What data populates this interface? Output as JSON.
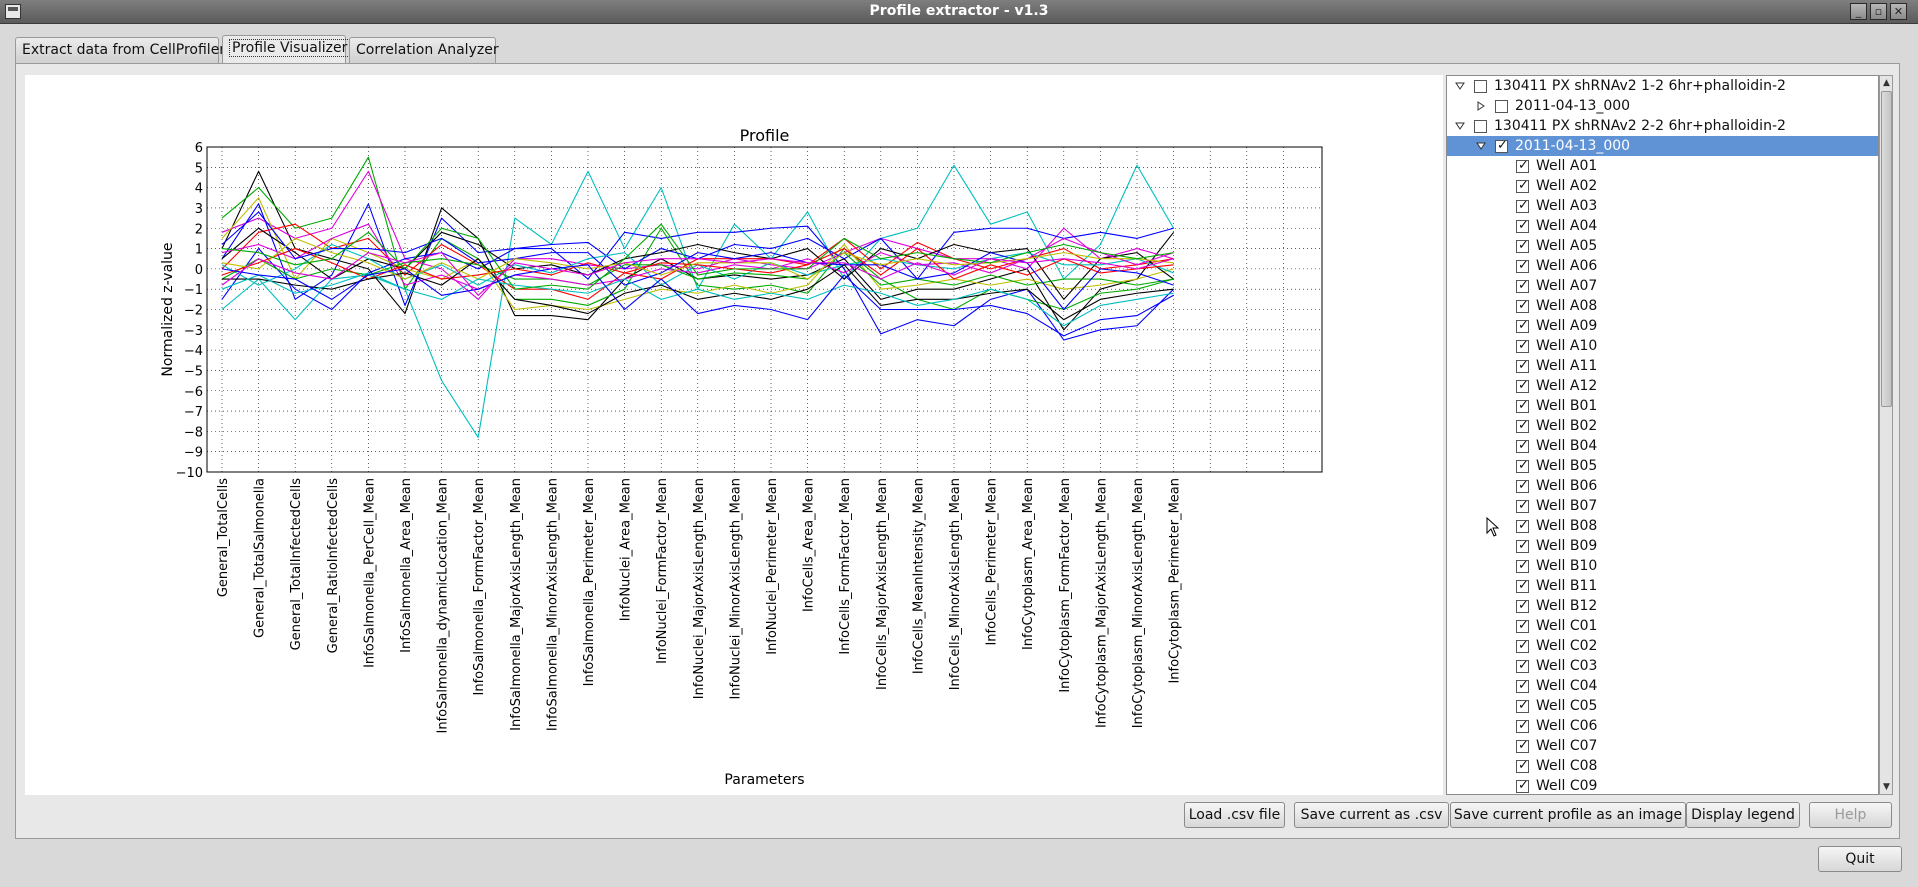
{
  "window": {
    "title": "Profile extractor - v1.3"
  },
  "tabs": [
    {
      "label": "Extract data from CellProfiler"
    },
    {
      "label": "Profile Visualizer"
    },
    {
      "label": "Correlation Analyzer"
    }
  ],
  "chart_data": {
    "type": "line",
    "title": "Profile",
    "xlabel": "Parameters",
    "ylabel": "Normalized z-value",
    "ylim": [
      -10,
      6
    ],
    "yticks": [
      "6",
      "5",
      "4",
      "3",
      "2",
      "1",
      "0",
      "−1",
      "−2",
      "−3",
      "−4",
      "−5",
      "−6",
      "−7",
      "−8",
      "−9",
      "−10"
    ],
    "grid": true,
    "categories": [
      "General_TotalCells",
      "General_TotalSalmonella",
      "General_TotalInfectedCells",
      "General_RatioInfectedCells",
      "InfoSalmonella_PerCell_Mean",
      "InfoSalmonella_Area_Mean",
      "InfoSalmonella_dynamicLocation_Mean",
      "InfoSalmonella_FormFactor_Mean",
      "InfoSalmonella_MajorAxisLength_Mean",
      "InfoSalmonella_MinorAxisLength_Mean",
      "InfoSalmonella_Perimeter_Mean",
      "InfoNuclei_Area_Mean",
      "InfoNuclei_FormFactor_Mean",
      "InfoNuclei_MajorAxisLength_Mean",
      "InfoNuclei_MinorAxisLength_Mean",
      "InfoNuclei_Perimeter_Mean",
      "InfoCells_Area_Mean",
      "InfoCells_FormFactor_Mean",
      "InfoCells_MajorAxisLength_Mean",
      "InfoCells_MeanIntensity_Mean",
      "InfoCells_MinorAxisLength_Mean",
      "InfoCells_Perimeter_Mean",
      "InfoCytoplasm_Area_Mean",
      "InfoCytoplasm_FormFactor_Mean",
      "InfoCytoplasm_MajorAxisLength_Mean",
      "InfoCytoplasm_MinorAxisLength_Mean",
      "InfoCytoplasm_Perimeter_Mean"
    ],
    "series": [
      {
        "color": "#00bfbf",
        "values": [
          -2.0,
          -0.5,
          -2.5,
          -0.5,
          -0.3,
          -1.0,
          -5.5,
          -8.3,
          2.5,
          1.2,
          4.8,
          1.0,
          4.0,
          -1.0,
          2.2,
          0.5,
          2.8,
          -0.5,
          1.5,
          2.0,
          5.1,
          2.2,
          2.8,
          -0.5,
          1.2,
          5.1,
          2.0
        ]
      },
      {
        "color": "#000000",
        "values": [
          1.0,
          4.8,
          1.0,
          0.5,
          0.0,
          -2.2,
          3.0,
          1.5,
          -2.3,
          -2.3,
          -2.5,
          -0.5,
          0.5,
          -0.5,
          -0.3,
          -0.5,
          -0.3,
          0.5,
          -1.5,
          -1.0,
          -1.0,
          -0.5,
          0.0,
          -3.0,
          -1.0,
          -0.5,
          1.8
        ]
      },
      {
        "color": "#0000ff",
        "values": [
          0.5,
          3.2,
          -1.5,
          -0.3,
          3.2,
          -1.8,
          2.5,
          0.8,
          1.0,
          1.0,
          -0.5,
          1.8,
          1.5,
          1.8,
          1.8,
          2.0,
          2.1,
          0.0,
          -3.2,
          -2.5,
          -2.8,
          -1.5,
          -1.0,
          -3.5,
          -3.0,
          -2.8,
          -1.0
        ]
      },
      {
        "color": "#00aa00",
        "values": [
          2.5,
          4.0,
          2.0,
          2.5,
          5.5,
          -1.0,
          1.5,
          0.5,
          -1.5,
          -1.5,
          -1.8,
          -1.0,
          2.0,
          -0.8,
          -1.0,
          -0.8,
          -1.2,
          1.0,
          -0.5,
          -1.5,
          -2.0,
          -1.0,
          -1.5,
          -2.0,
          -1.2,
          -1.0,
          -0.5
        ]
      },
      {
        "color": "#dd00dd",
        "values": [
          1.8,
          2.5,
          1.5,
          2.0,
          4.8,
          0.5,
          0.0,
          -1.5,
          0.5,
          0.5,
          0.2,
          0.0,
          0.2,
          0.0,
          0.5,
          0.2,
          0.0,
          0.8,
          1.5,
          1.0,
          0.5,
          0.5,
          0.0,
          2.0,
          0.5,
          1.0,
          0.5
        ]
      },
      {
        "color": "#ff0000",
        "values": [
          0.0,
          1.8,
          2.2,
          1.0,
          1.5,
          -0.3,
          1.2,
          0.2,
          -1.0,
          -1.0,
          -1.5,
          -0.2,
          -0.5,
          0.5,
          0.5,
          0.5,
          0.2,
          1.5,
          0.0,
          1.3,
          0.5,
          0.0,
          0.5,
          1.0,
          0.0,
          0.2,
          0.5
        ]
      },
      {
        "color": "#bfbf00",
        "values": [
          1.5,
          3.5,
          -0.5,
          1.5,
          0.8,
          0.0,
          -0.5,
          0.5,
          -2.0,
          -1.8,
          -2.0,
          -1.5,
          -1.0,
          -1.2,
          -0.8,
          -1.2,
          -0.8,
          1.2,
          -1.0,
          -0.8,
          -0.5,
          -0.8,
          -0.5,
          -1.0,
          -0.8,
          -0.5,
          0.0
        ]
      },
      {
        "color": "#0000ff",
        "values": [
          -1.5,
          1.0,
          -1.0,
          -2.0,
          -0.2,
          0.5,
          0.8,
          0.0,
          1.0,
          1.2,
          1.3,
          0.0,
          1.0,
          0.5,
          1.2,
          1.0,
          1.5,
          0.5,
          1.5,
          -0.5,
          1.8,
          2.0,
          2.0,
          1.5,
          1.8,
          1.5,
          2.0
        ]
      },
      {
        "color": "#000000",
        "values": [
          0.5,
          2.0,
          0.8,
          -0.5,
          0.5,
          0.0,
          1.8,
          1.2,
          0.0,
          0.2,
          -0.3,
          0.5,
          0.8,
          1.2,
          0.8,
          0.5,
          1.0,
          -0.5,
          1.0,
          0.5,
          1.2,
          0.8,
          1.0,
          -1.5,
          0.5,
          0.8,
          -0.5
        ]
      },
      {
        "color": "#00bfbf",
        "values": [
          0.2,
          -0.8,
          0.0,
          1.2,
          0.5,
          -0.5,
          0.2,
          -0.8,
          0.2,
          -0.2,
          0.5,
          0.8,
          -0.8,
          0.2,
          -0.5,
          0.3,
          -0.3,
          0.2,
          0.5,
          0.2,
          0.0,
          0.5,
          0.8,
          0.2,
          0.2,
          0.5,
          -0.2
        ]
      },
      {
        "color": "#00aa00",
        "values": [
          -0.5,
          0.5,
          -0.5,
          0.0,
          -0.3,
          0.3,
          0.5,
          0.2,
          -0.5,
          -0.5,
          -0.8,
          0.2,
          0.2,
          -0.5,
          -0.2,
          -0.3,
          -0.5,
          0.8,
          -0.8,
          -0.5,
          -0.8,
          -0.3,
          -0.8,
          -0.5,
          -0.5,
          -0.8,
          -0.5
        ]
      },
      {
        "color": "#dd00dd",
        "values": [
          0.8,
          1.2,
          0.5,
          1.5,
          2.2,
          -0.8,
          -0.3,
          -1.0,
          -0.3,
          -0.5,
          -0.8,
          -0.5,
          0.0,
          -0.2,
          0.2,
          0.0,
          0.5,
          -0.2,
          0.8,
          0.2,
          0.3,
          -0.2,
          0.5,
          1.5,
          0.8,
          0.2,
          0.8
        ]
      },
      {
        "color": "#ff0000",
        "values": [
          -0.3,
          0.3,
          1.0,
          0.3,
          -0.5,
          0.2,
          -0.5,
          -0.3,
          0.0,
          -0.3,
          0.3,
          -0.2,
          0.3,
          0.2,
          0.0,
          -0.2,
          0.2,
          1.0,
          -0.3,
          1.0,
          -0.5,
          0.2,
          -0.3,
          0.5,
          -0.2,
          0.0,
          0.2
        ]
      },
      {
        "color": "#0000ff",
        "values": [
          1.2,
          2.8,
          0.5,
          1.0,
          1.0,
          0.8,
          1.5,
          0.3,
          0.5,
          0.8,
          0.8,
          -0.8,
          -0.2,
          0.8,
          0.5,
          0.8,
          0.3,
          0.2,
          0.2,
          -0.5,
          -0.2,
          0.8,
          0.3,
          -2.0,
          0.0,
          -0.2,
          -0.8
        ]
      },
      {
        "color": "#000000",
        "values": [
          -0.5,
          -0.5,
          -0.8,
          -1.0,
          -0.5,
          -0.2,
          -0.8,
          0.5,
          -1.5,
          -1.8,
          -2.2,
          -1.2,
          -0.8,
          -1.5,
          -1.2,
          -1.5,
          -1.0,
          0.2,
          -1.8,
          -1.5,
          -1.5,
          -1.2,
          -1.0,
          -2.5,
          -1.5,
          -1.2,
          -1.0
        ]
      },
      {
        "color": "#bfbf00",
        "values": [
          0.3,
          0.0,
          1.5,
          0.8,
          0.3,
          -0.5,
          0.3,
          -0.5,
          0.5,
          0.3,
          0.0,
          0.3,
          -0.3,
          0.3,
          0.3,
          0.3,
          -0.5,
          0.8,
          0.2,
          0.5,
          0.2,
          0.3,
          0.5,
          0.8,
          0.5,
          0.5,
          0.3
        ]
      },
      {
        "color": "#00bfbf",
        "values": [
          -1.0,
          -0.3,
          -1.2,
          -0.8,
          -0.2,
          -1.0,
          -1.5,
          -0.5,
          -0.8,
          -1.0,
          -1.2,
          -0.5,
          -1.5,
          -1.0,
          -1.5,
          -1.2,
          -1.5,
          -0.8,
          -1.2,
          -1.8,
          -1.5,
          -1.0,
          -1.5,
          -2.8,
          -1.8,
          -1.5,
          -1.2
        ]
      },
      {
        "color": "#00aa00",
        "values": [
          1.0,
          0.8,
          0.2,
          0.5,
          1.8,
          0.0,
          2.0,
          1.5,
          -1.0,
          -0.8,
          -1.0,
          0.5,
          2.2,
          -0.3,
          0.0,
          0.0,
          0.0,
          1.5,
          0.5,
          0.8,
          0.5,
          0.3,
          0.8,
          1.2,
          0.8,
          0.5,
          0.8
        ]
      },
      {
        "color": "#0000ff",
        "values": [
          0.0,
          -0.3,
          -0.5,
          -1.5,
          -0.3,
          0.0,
          -1.3,
          -1.0,
          -0.3,
          0.0,
          0.2,
          -2.0,
          -0.5,
          -2.2,
          -1.8,
          -2.0,
          -2.5,
          -0.3,
          -2.0,
          -2.0,
          -2.0,
          -1.8,
          -2.2,
          -3.3,
          -2.5,
          -2.3,
          -1.3
        ]
      },
      {
        "color": "#dd00dd",
        "values": [
          -0.8,
          0.5,
          -0.2,
          -0.5,
          0.8,
          0.3,
          0.8,
          -1.3,
          0.3,
          0.0,
          -0.3,
          0.3,
          0.5,
          0.5,
          0.3,
          0.5,
          0.3,
          0.3,
          -0.5,
          0.3,
          -0.3,
          0.5,
          0.3,
          0.5,
          0.3,
          0.0,
          0.5
        ]
      }
    ]
  },
  "tree": {
    "groups": [
      {
        "label": "130411 PX shRNAv2 1-2 6hr+phalloidin-2",
        "expanded": true,
        "checked": false
      },
      {
        "label": "2011-04-13_000",
        "expanded": false,
        "checked": false
      },
      {
        "label": "130411 PX shRNAv2 2-2 6hr+phalloidin-2",
        "expanded": true,
        "checked": false
      },
      {
        "label": "2011-04-13_000",
        "expanded": true,
        "checked": true,
        "selected": true
      }
    ],
    "wells": [
      "Well A01",
      "Well A02",
      "Well A03",
      "Well A04",
      "Well A05",
      "Well A06",
      "Well A07",
      "Well A08",
      "Well A09",
      "Well A10",
      "Well A11",
      "Well A12",
      "Well B01",
      "Well B02",
      "Well B04",
      "Well B05",
      "Well B06",
      "Well B07",
      "Well B08",
      "Well B09",
      "Well B10",
      "Well B11",
      "Well B12",
      "Well C01",
      "Well C02",
      "Well C03",
      "Well C04",
      "Well C05",
      "Well C06",
      "Well C07",
      "Well C08",
      "Well C09"
    ]
  },
  "buttons": {
    "load_csv": "Load .csv file",
    "save_csv": "Save current as .csv",
    "save_image": "Save current profile as an image",
    "display_legend": "Display legend",
    "help": "Help",
    "quit": "Quit"
  }
}
